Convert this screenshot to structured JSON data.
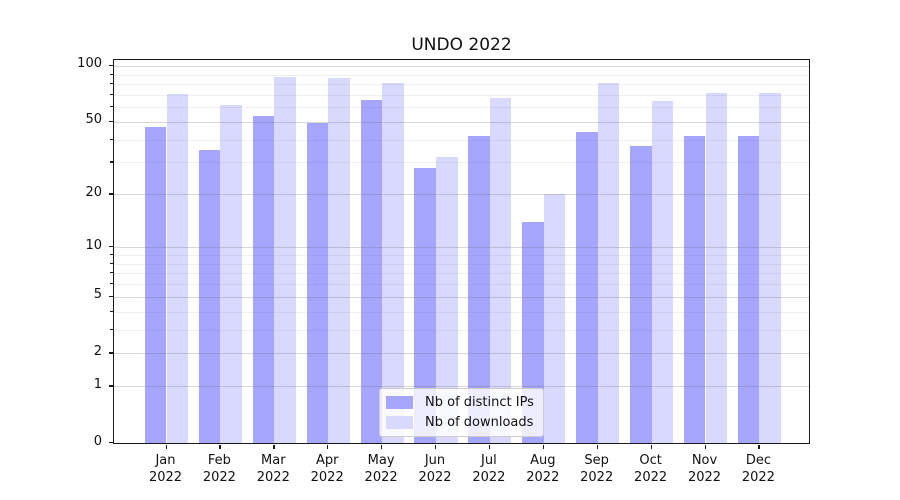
{
  "chart_data": {
    "type": "bar",
    "title": "UNDO 2022",
    "categories": [
      "Jan",
      "Feb",
      "Mar",
      "Apr",
      "May",
      "Jun",
      "Jul",
      "Aug",
      "Sep",
      "Oct",
      "Nov",
      "Dec"
    ],
    "year_label": "2022",
    "series": [
      {
        "name": "Nb of distinct IPs",
        "color": "#a6a6ff",
        "values": [
          47,
          35,
          54,
          49,
          66,
          28,
          42,
          14,
          44,
          37,
          42,
          42
        ]
      },
      {
        "name": "Nb of downloads",
        "color": "#d9d9ff",
        "values": [
          71,
          62,
          87,
          86,
          81,
          32,
          67,
          20,
          81,
          65,
          72,
          72
        ]
      }
    ],
    "xlabel": "",
    "ylabel": "",
    "y_scale": "log1p",
    "y_ticks": [
      100,
      50,
      20,
      10,
      5,
      2,
      1,
      0
    ],
    "y_minor_ticks": [
      3,
      4,
      6,
      7,
      8,
      9,
      30,
      40,
      60,
      70,
      80,
      90
    ],
    "ylim": [
      0,
      110
    ],
    "grid": true,
    "legend_position": "lower center"
  }
}
